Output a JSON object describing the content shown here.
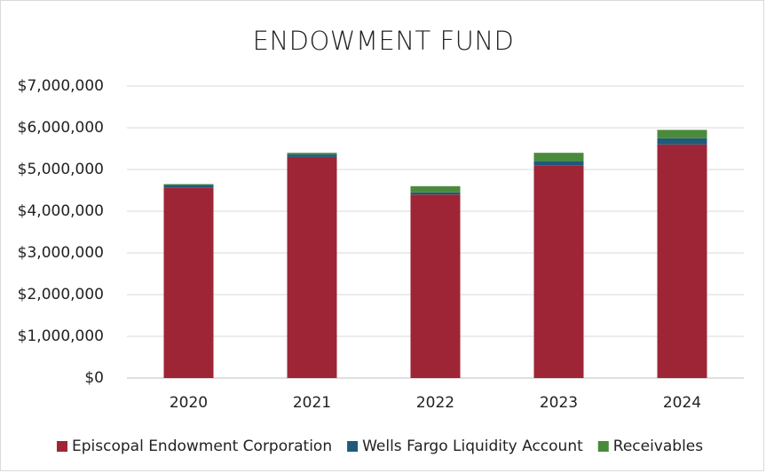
{
  "chart_data": {
    "type": "stacked_bar",
    "title": "ENDOWMENT FUND",
    "categories": [
      "2020",
      "2021",
      "2022",
      "2023",
      "2024"
    ],
    "series": [
      {
        "name": "Episcopal Endowment Corporation",
        "color": "#9e2536",
        "values": [
          4570000,
          5300000,
          4400000,
          5100000,
          5600000
        ]
      },
      {
        "name": "Wells Fargo Liquidity Account",
        "color": "#1f5a7a",
        "values": [
          60000,
          60000,
          50000,
          100000,
          150000
        ]
      },
      {
        "name": "Receivables",
        "color": "#4a8a3b",
        "values": [
          20000,
          40000,
          150000,
          200000,
          200000
        ]
      }
    ],
    "ylim": [
      0,
      7000000
    ],
    "yticks": [
      {
        "value": 0,
        "label": "$0"
      },
      {
        "value": 1000000,
        "label": "$1,000,000"
      },
      {
        "value": 2000000,
        "label": "$2,000,000"
      },
      {
        "value": 3000000,
        "label": "$3,000,000"
      },
      {
        "value": 4000000,
        "label": "$4,000,000"
      },
      {
        "value": 5000000,
        "label": "$5,000,000"
      },
      {
        "value": 6000000,
        "label": "$6,000,000"
      },
      {
        "value": 7000000,
        "label": "$7,000,000"
      }
    ],
    "grid": true,
    "legend": "bottom"
  }
}
